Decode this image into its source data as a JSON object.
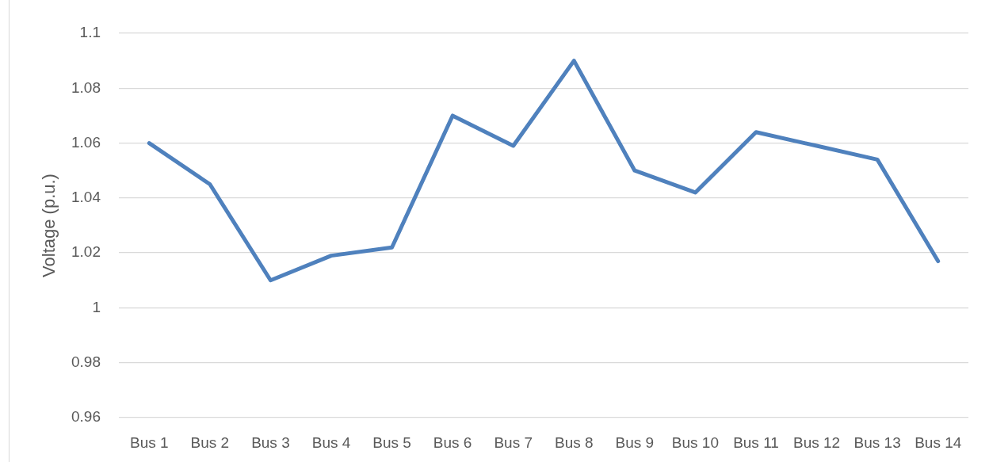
{
  "chart_data": {
    "type": "line",
    "ylabel": "Voltage (p.u.)",
    "categories": [
      "Bus 1",
      "Bus 2",
      "Bus 3",
      "Bus 4",
      "Bus 5",
      "Bus 6",
      "Bus 7",
      "Bus 8",
      "Bus 9",
      "Bus 10",
      "Bus 11",
      "Bus 12",
      "Bus 13",
      "Bus 14"
    ],
    "series": [
      {
        "color": "#4f81bd",
        "values": [
          1.06,
          1.045,
          1.01,
          1.019,
          1.022,
          1.07,
          1.059,
          1.09,
          1.05,
          1.042,
          1.064,
          1.059,
          1.054,
          1.017
        ]
      }
    ],
    "ylim": [
      0.96,
      1.1
    ],
    "yticks": [
      0.96,
      0.98,
      1,
      1.02,
      1.04,
      1.06,
      1.08,
      1.1
    ],
    "grid": "y"
  }
}
